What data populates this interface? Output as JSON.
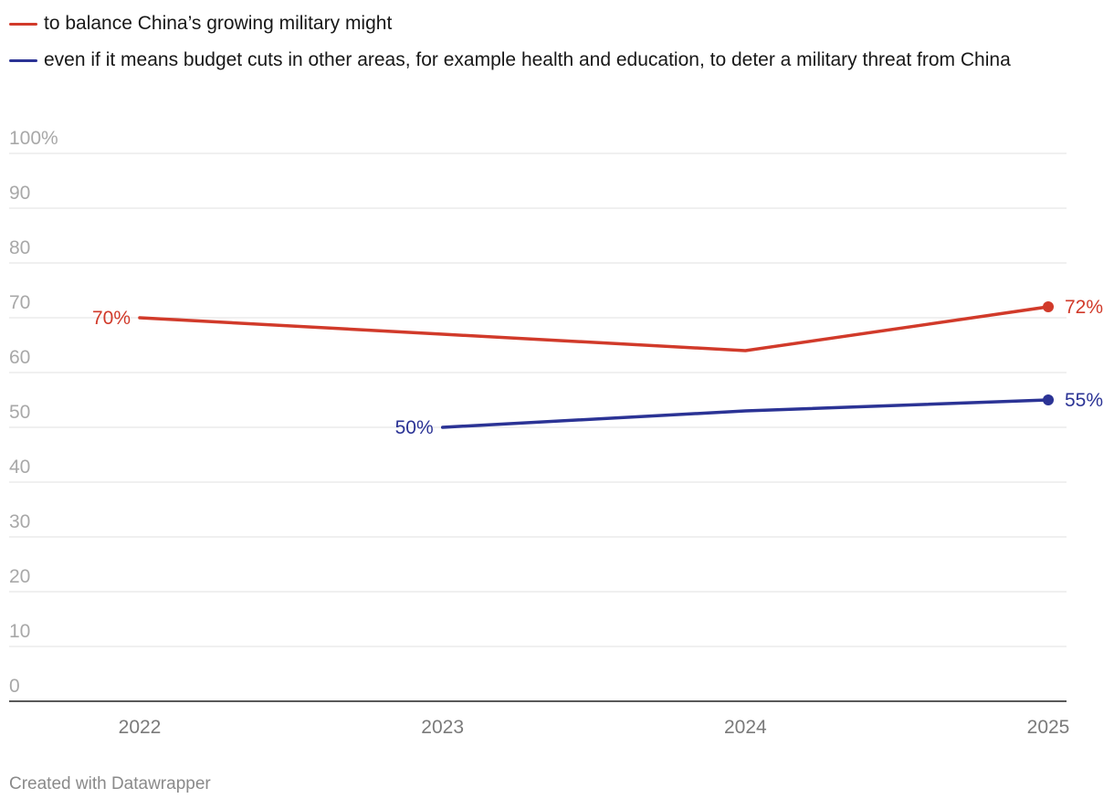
{
  "chart_data": {
    "type": "line",
    "x": [
      2022,
      2023,
      2024,
      2025
    ],
    "x_tick_labels": [
      "2022",
      "2023",
      "2024",
      "2025"
    ],
    "y_tick_labels": [
      "0",
      "10",
      "20",
      "30",
      "40",
      "50",
      "60",
      "70",
      "80",
      "90",
      "100%"
    ],
    "ylim": [
      0,
      100
    ],
    "grid": true,
    "legend": "top-left",
    "series": [
      {
        "name": "to balance China’s growing military might",
        "color": "#d13a2a",
        "x": [
          2022,
          2023,
          2024,
          2025
        ],
        "values": [
          70,
          67,
          64,
          72
        ],
        "labels": [
          {
            "x": 2022,
            "value": 70,
            "text": "70%",
            "side": "left",
            "marker": false
          },
          {
            "x": 2025,
            "value": 72,
            "text": "72%",
            "side": "right",
            "marker": true
          }
        ]
      },
      {
        "name": "even if it means budget cuts in other areas, for example health and education, to deter a military threat from China",
        "color": "#2b3395",
        "x": [
          2023,
          2024,
          2025
        ],
        "values": [
          50,
          53,
          55
        ],
        "labels": [
          {
            "x": 2023,
            "value": 50,
            "text": "50%",
            "side": "left",
            "marker": false
          },
          {
            "x": 2025,
            "value": 55,
            "text": "55%",
            "side": "right",
            "marker": true
          }
        ]
      }
    ]
  },
  "footer": {
    "credit": "Created with Datawrapper"
  }
}
